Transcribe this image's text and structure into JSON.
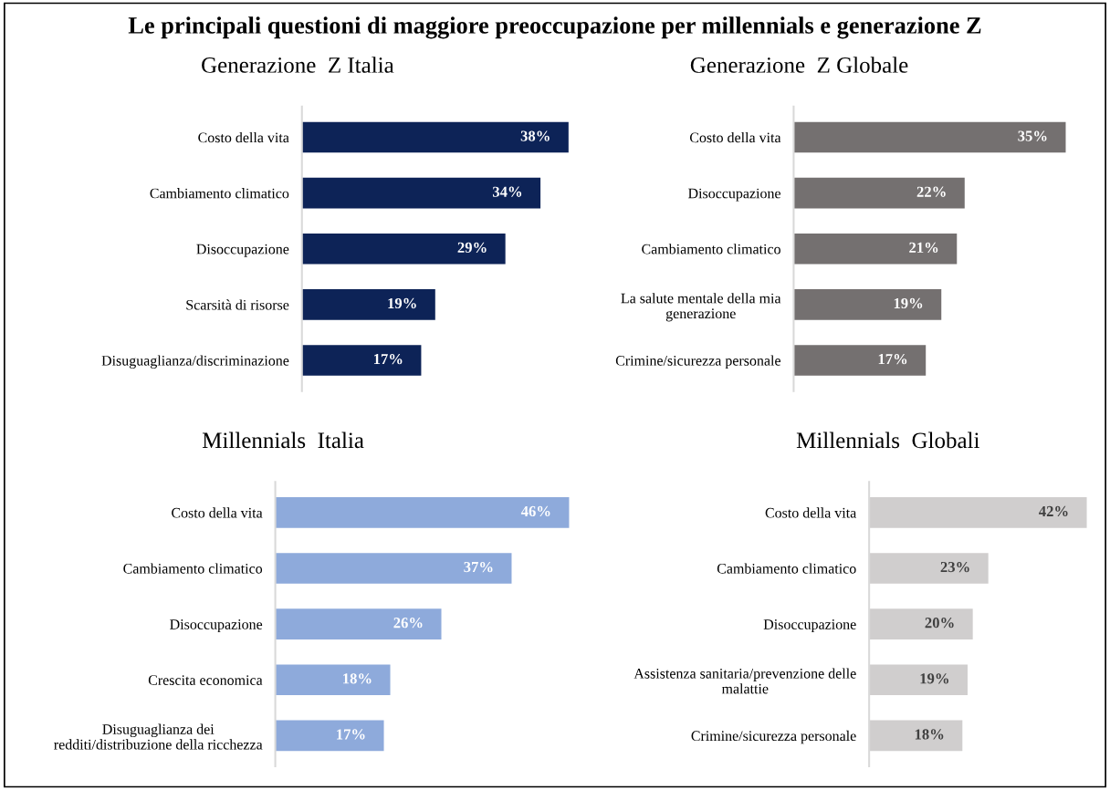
{
  "chart_data": [
    {
      "type": "bar",
      "orientation": "horizontal",
      "title": "Le principali questioni di maggiore preoccupazione per millennials e generazione Z",
      "subtitle": "Generazione  Z Italia",
      "categories": [
        "Costo della vita",
        "Cambiamento climatico",
        "Disoccupazione",
        "Scarsità di risorse",
        "Disuguaglianza/discriminazione"
      ],
      "values": [
        38,
        34,
        29,
        19,
        17
      ],
      "value_labels": [
        "38%",
        "34%",
        "29%",
        "19%",
        "17%"
      ],
      "color": "#0d2357",
      "tick_labels": "y",
      "grid": false,
      "legend": false
    },
    {
      "type": "bar",
      "orientation": "horizontal",
      "subtitle": "Generazione  Z Globale",
      "categories": [
        "Costo della vita",
        "Disoccupazione",
        "Cambiamento climatico",
        "La salute mentale della mia\ngenerazione",
        "Crimine/sicurezza personale"
      ],
      "values": [
        35,
        22,
        21,
        19,
        17
      ],
      "value_labels": [
        "35%",
        "22%",
        "21%",
        "19%",
        "17%"
      ],
      "color": "#747070",
      "tick_labels": "y",
      "grid": false,
      "legend": false
    },
    {
      "type": "bar",
      "orientation": "horizontal",
      "subtitle": "Millennials  Italia",
      "categories": [
        "Costo della vita",
        "Cambiamento climatico",
        "Disoccupazione",
        "Crescita economica",
        "Disuguaglianza dei\nredditi/distribuzione della ricchezza"
      ],
      "values": [
        46,
        37,
        26,
        18,
        17
      ],
      "value_labels": [
        "46%",
        "37%",
        "26%",
        "18%",
        "17%"
      ],
      "color": "#8eaadb",
      "tick_labels": "y",
      "grid": false,
      "legend": false
    },
    {
      "type": "bar",
      "orientation": "horizontal",
      "subtitle": "Millennials  Globali",
      "categories": [
        "Costo della vita",
        "Cambiamento climatico",
        "Disoccupazione",
        "Assistenza sanitaria/prevenzione delle\nmalattie",
        "Crimine/sicurezza personale"
      ],
      "values": [
        42,
        23,
        20,
        19,
        18
      ],
      "value_labels": [
        "42%",
        "23%",
        "20%",
        "19%",
        "18%"
      ],
      "color": "#d0cece",
      "tick_labels": "y",
      "grid": false,
      "legend": false
    }
  ]
}
